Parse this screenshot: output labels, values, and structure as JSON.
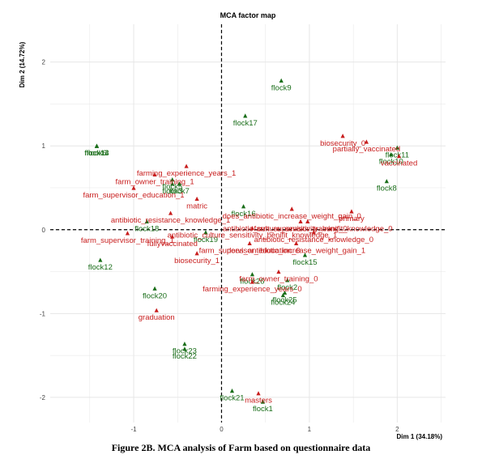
{
  "caption": "Figure 2B. MCA analysis of Farm based on questionnaire data",
  "colors": {
    "individuals": "#1a6e1a",
    "categories": "#c81e1e",
    "grid": "#e6e6e6",
    "zero": "#000000"
  },
  "chart_data": {
    "type": "scatter",
    "title": "MCA factor map",
    "xlabel": "Dim 1 (34.18%)",
    "ylabel": "Dim 2 (14.72%)",
    "xlim": [
      -1.95,
      2.55
    ],
    "ylim": [
      -2.3,
      2.45
    ],
    "xticks": [
      -1,
      0,
      1,
      2
    ],
    "yticks": [
      -2,
      -1,
      0,
      1,
      2
    ],
    "grid": true,
    "series": [
      {
        "points": [
          {
            "label": "flock9",
            "x": 0.68,
            "y": 1.78
          },
          {
            "label": "flock17",
            "x": 0.27,
            "y": 1.36
          },
          {
            "label": "flock14",
            "x": -1.42,
            "y": 1.0
          },
          {
            "label": "flock6",
            "x": -1.42,
            "y": 1.0
          },
          {
            "label": "flock13",
            "x": -1.42,
            "y": 1.0
          },
          {
            "label": "flock11",
            "x": 2.0,
            "y": 0.98
          },
          {
            "label": "flock10",
            "x": 1.93,
            "y": 0.9
          },
          {
            "label": "flock5",
            "x": -0.56,
            "y": 0.6
          },
          {
            "label": "flock3",
            "x": -0.56,
            "y": 0.55
          },
          {
            "label": "flock7",
            "x": -0.48,
            "y": 0.55
          },
          {
            "label": "flock8",
            "x": 1.88,
            "y": 0.58
          },
          {
            "label": "flock16",
            "x": 0.25,
            "y": 0.28
          },
          {
            "label": "flock18",
            "x": -0.85,
            "y": 0.1
          },
          {
            "label": "flock19",
            "x": -0.18,
            "y": -0.03
          },
          {
            "label": "flock15",
            "x": 0.95,
            "y": -0.3
          },
          {
            "label": "flock12",
            "x": -1.38,
            "y": -0.36
          },
          {
            "label": "flock26",
            "x": 0.35,
            "y": -0.53
          },
          {
            "label": "flock20",
            "x": -0.76,
            "y": -0.7
          },
          {
            "label": "flock2",
            "x": 0.75,
            "y": -0.6
          },
          {
            "label": "flock24",
            "x": 0.7,
            "y": -0.78
          },
          {
            "label": "flock25",
            "x": 0.72,
            "y": -0.75
          },
          {
            "label": "flock23",
            "x": -0.42,
            "y": -1.36
          },
          {
            "label": "flock22",
            "x": -0.42,
            "y": -1.42
          },
          {
            "label": "flock21",
            "x": 0.12,
            "y": -1.92
          },
          {
            "label": "flock1",
            "x": 0.47,
            "y": -2.05
          }
        ]
      },
      {
        "points": [
          {
            "label": "biosecurity_0",
            "x": 1.38,
            "y": 1.12
          },
          {
            "label": "partially_vaccinated",
            "x": 1.65,
            "y": 1.05
          },
          {
            "label": "vaccinated",
            "x": 2.02,
            "y": 0.88
          },
          {
            "label": "farming_experience_years_1",
            "x": -0.4,
            "y": 0.76
          },
          {
            "label": "farm_owner_training_1",
            "x": -0.76,
            "y": 0.66
          },
          {
            "label": "farm_supervisor_education_1",
            "x": -1.0,
            "y": 0.5
          },
          {
            "label": "matric",
            "x": -0.28,
            "y": 0.37
          },
          {
            "label": "does_antibiotic_increase_weight_gain_0",
            "x": 0.8,
            "y": 0.25
          },
          {
            "label": "primary",
            "x": 1.48,
            "y": 0.22
          },
          {
            "label": "antibiotic_resistance_knowledge_1",
            "x": -0.58,
            "y": 0.2
          },
          {
            "label": "farm_supervisor_training_0",
            "x": 0.9,
            "y": 0.1
          },
          {
            "label": "antibiotic_culture_sensitivity_benifit_knowledge_0",
            "x": 0.98,
            "y": 0.1
          },
          {
            "label": "antibiotic_culture_sensitivity_benifit_knowledge_1",
            "x": 0.35,
            "y": 0.02
          },
          {
            "label": "antibiotic_resistance_knowledge_0",
            "x": 1.05,
            "y": -0.03
          },
          {
            "label": "farm_supervisor_training_1",
            "x": -1.07,
            "y": -0.04
          },
          {
            "label": "fullyvaccinated",
            "x": -0.56,
            "y": -0.08
          },
          {
            "label": "does_antibiotic_increase_weight_gain_1",
            "x": 0.85,
            "y": -0.16
          },
          {
            "label": "farm_supervisor_education_0",
            "x": 0.32,
            "y": -0.16
          },
          {
            "label": "biosecurity_1",
            "x": -0.28,
            "y": -0.28
          },
          {
            "label": "farm_owner_training_0",
            "x": 0.65,
            "y": -0.5
          },
          {
            "label": "farming_experience_years_0",
            "x": 0.35,
            "y": -0.62
          },
          {
            "label": "graduation",
            "x": -0.74,
            "y": -0.96
          },
          {
            "label": "masters",
            "x": 0.42,
            "y": -1.95
          }
        ]
      }
    ]
  }
}
